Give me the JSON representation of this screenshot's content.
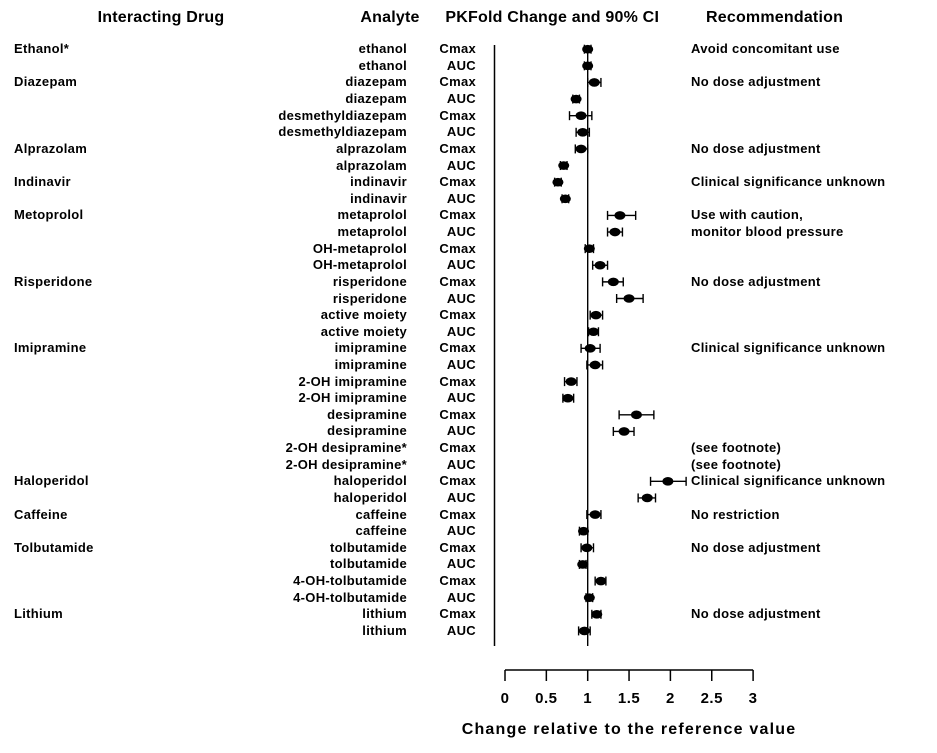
{
  "headers": {
    "interacting_drug": "Interacting Drug",
    "analyte": "Analyte",
    "pk": "PK",
    "fold_change": "Fold Change and 90% CI",
    "recommendation": "Recommendation"
  },
  "chart_data": {
    "type": "scatter",
    "subtype": "forest-plot",
    "title": "",
    "xlabel": "Change relative to the reference value",
    "ylabel": "",
    "xlim": [
      0,
      3
    ],
    "xticks": [
      0,
      0.5,
      1,
      1.5,
      2,
      2.5,
      3
    ],
    "xtick_labels": [
      "0",
      "0.5",
      "1",
      "1.5",
      "2",
      "2.5",
      "3"
    ],
    "reference_line_x": 1,
    "grid": false,
    "legend": "none",
    "marker_color": "#000000",
    "points": [
      {
        "drug": "Ethanol*",
        "analyte": "ethanol",
        "pk": "Cmax",
        "fold_change": 1.0,
        "ci90_low": 0.96,
        "ci90_high": 1.04,
        "recommendation": "Avoid concomitant use"
      },
      {
        "drug": "",
        "analyte": "ethanol",
        "pk": "AUC",
        "fold_change": 1.0,
        "ci90_low": 0.96,
        "ci90_high": 1.04,
        "recommendation": ""
      },
      {
        "drug": "Diazepam",
        "analyte": "diazepam",
        "pk": "Cmax",
        "fold_change": 1.08,
        "ci90_low": 1.0,
        "ci90_high": 1.16,
        "recommendation": "No dose adjustment"
      },
      {
        "drug": "",
        "analyte": "diazepam",
        "pk": "AUC",
        "fold_change": 0.86,
        "ci90_low": 0.82,
        "ci90_high": 0.9,
        "recommendation": ""
      },
      {
        "drug": "",
        "analyte": "desmethyldiazepam",
        "pk": "Cmax",
        "fold_change": 0.92,
        "ci90_low": 0.78,
        "ci90_high": 1.05,
        "recommendation": ""
      },
      {
        "drug": "",
        "analyte": "desmethyldiazepam",
        "pk": "AUC",
        "fold_change": 0.94,
        "ci90_low": 0.86,
        "ci90_high": 1.02,
        "recommendation": ""
      },
      {
        "drug": "Alprazolam",
        "analyte": "alprazolam",
        "pk": "Cmax",
        "fold_change": 0.92,
        "ci90_low": 0.85,
        "ci90_high": 1.0,
        "recommendation": "No dose adjustment"
      },
      {
        "drug": "",
        "analyte": "alprazolam",
        "pk": "AUC",
        "fold_change": 0.71,
        "ci90_low": 0.67,
        "ci90_high": 0.75,
        "recommendation": ""
      },
      {
        "drug": "Indinavir",
        "analyte": "indinavir",
        "pk": "Cmax",
        "fold_change": 0.64,
        "ci90_low": 0.6,
        "ci90_high": 0.68,
        "recommendation": "Clinical significance unknown"
      },
      {
        "drug": "",
        "analyte": "indinavir",
        "pk": "AUC",
        "fold_change": 0.73,
        "ci90_low": 0.69,
        "ci90_high": 0.77,
        "recommendation": ""
      },
      {
        "drug": "Metoprolol",
        "analyte": "metaprolol",
        "pk": "Cmax",
        "fold_change": 1.39,
        "ci90_low": 1.24,
        "ci90_high": 1.58,
        "recommendation": "Use with caution,"
      },
      {
        "drug": "",
        "analyte": "metaprolol",
        "pk": "AUC",
        "fold_change": 1.33,
        "ci90_low": 1.24,
        "ci90_high": 1.42,
        "recommendation": "monitor blood pressure"
      },
      {
        "drug": "",
        "analyte": "OH-metaprolol",
        "pk": "Cmax",
        "fold_change": 1.02,
        "ci90_low": 0.97,
        "ci90_high": 1.07,
        "recommendation": ""
      },
      {
        "drug": "",
        "analyte": "OH-metaprolol",
        "pk": "AUC",
        "fold_change": 1.15,
        "ci90_low": 1.06,
        "ci90_high": 1.24,
        "recommendation": ""
      },
      {
        "drug": "Risperidone",
        "analyte": "risperidone",
        "pk": "Cmax",
        "fold_change": 1.31,
        "ci90_low": 1.18,
        "ci90_high": 1.43,
        "recommendation": "No dose adjustment"
      },
      {
        "drug": "",
        "analyte": "risperidone",
        "pk": "AUC",
        "fold_change": 1.5,
        "ci90_low": 1.35,
        "ci90_high": 1.67,
        "recommendation": ""
      },
      {
        "drug": "",
        "analyte": "active moiety",
        "pk": "Cmax",
        "fold_change": 1.1,
        "ci90_low": 1.03,
        "ci90_high": 1.18,
        "recommendation": ""
      },
      {
        "drug": "",
        "analyte": "active moiety",
        "pk": "AUC",
        "fold_change": 1.07,
        "ci90_low": 1.01,
        "ci90_high": 1.13,
        "recommendation": ""
      },
      {
        "drug": "Imipramine",
        "analyte": "imipramine",
        "pk": "Cmax",
        "fold_change": 1.03,
        "ci90_low": 0.92,
        "ci90_high": 1.15,
        "recommendation": "Clinical significance unknown"
      },
      {
        "drug": "",
        "analyte": "imipramine",
        "pk": "AUC",
        "fold_change": 1.09,
        "ci90_low": 0.99,
        "ci90_high": 1.18,
        "recommendation": ""
      },
      {
        "drug": "",
        "analyte": "2-OH imipramine",
        "pk": "Cmax",
        "fold_change": 0.8,
        "ci90_low": 0.72,
        "ci90_high": 0.87,
        "recommendation": ""
      },
      {
        "drug": "",
        "analyte": "2-OH imipramine",
        "pk": "AUC",
        "fold_change": 0.76,
        "ci90_low": 0.7,
        "ci90_high": 0.83,
        "recommendation": ""
      },
      {
        "drug": "",
        "analyte": "desipramine",
        "pk": "Cmax",
        "fold_change": 1.59,
        "ci90_low": 1.38,
        "ci90_high": 1.8,
        "recommendation": ""
      },
      {
        "drug": "",
        "analyte": "desipramine",
        "pk": "AUC",
        "fold_change": 1.44,
        "ci90_low": 1.31,
        "ci90_high": 1.56,
        "recommendation": ""
      },
      {
        "drug": "",
        "analyte": "2-OH desipramine*",
        "pk": "Cmax",
        "fold_change": null,
        "ci90_low": null,
        "ci90_high": null,
        "recommendation": "(see footnote)"
      },
      {
        "drug": "",
        "analyte": "2-OH desipramine*",
        "pk": "AUC",
        "fold_change": null,
        "ci90_low": null,
        "ci90_high": null,
        "recommendation": "(see footnote)"
      },
      {
        "drug": "Haloperidol",
        "analyte": "haloperidol",
        "pk": "Cmax",
        "fold_change": 1.97,
        "ci90_low": 1.76,
        "ci90_high": 2.19,
        "recommendation": "Clinical significance unknown"
      },
      {
        "drug": "",
        "analyte": "haloperidol",
        "pk": "AUC",
        "fold_change": 1.72,
        "ci90_low": 1.61,
        "ci90_high": 1.82,
        "recommendation": ""
      },
      {
        "drug": "Caffeine",
        "analyte": "caffeine",
        "pk": "Cmax",
        "fold_change": 1.09,
        "ci90_low": 0.99,
        "ci90_high": 1.16,
        "recommendation": "No restriction"
      },
      {
        "drug": "",
        "analyte": "caffeine",
        "pk": "AUC",
        "fold_change": 0.95,
        "ci90_low": 0.9,
        "ci90_high": 1.0,
        "recommendation": ""
      },
      {
        "drug": "Tolbutamide",
        "analyte": "tolbutamide",
        "pk": "Cmax",
        "fold_change": 0.99,
        "ci90_low": 0.92,
        "ci90_high": 1.07,
        "recommendation": "No dose adjustment"
      },
      {
        "drug": "",
        "analyte": "tolbutamide",
        "pk": "AUC",
        "fold_change": 0.94,
        "ci90_low": 0.9,
        "ci90_high": 0.98,
        "recommendation": ""
      },
      {
        "drug": "",
        "analyte": "4-OH-tolbutamide",
        "pk": "Cmax",
        "fold_change": 1.16,
        "ci90_low": 1.09,
        "ci90_high": 1.22,
        "recommendation": ""
      },
      {
        "drug": "",
        "analyte": "4-OH-tolbutamide",
        "pk": "AUC",
        "fold_change": 1.02,
        "ci90_low": 0.98,
        "ci90_high": 1.06,
        "recommendation": ""
      },
      {
        "drug": "Lithium",
        "analyte": "lithium",
        "pk": "Cmax",
        "fold_change": 1.11,
        "ci90_low": 1.05,
        "ci90_high": 1.16,
        "recommendation": "No dose adjustment"
      },
      {
        "drug": "",
        "analyte": "lithium",
        "pk": "AUC",
        "fold_change": 0.96,
        "ci90_low": 0.89,
        "ci90_high": 1.03,
        "recommendation": ""
      }
    ]
  }
}
